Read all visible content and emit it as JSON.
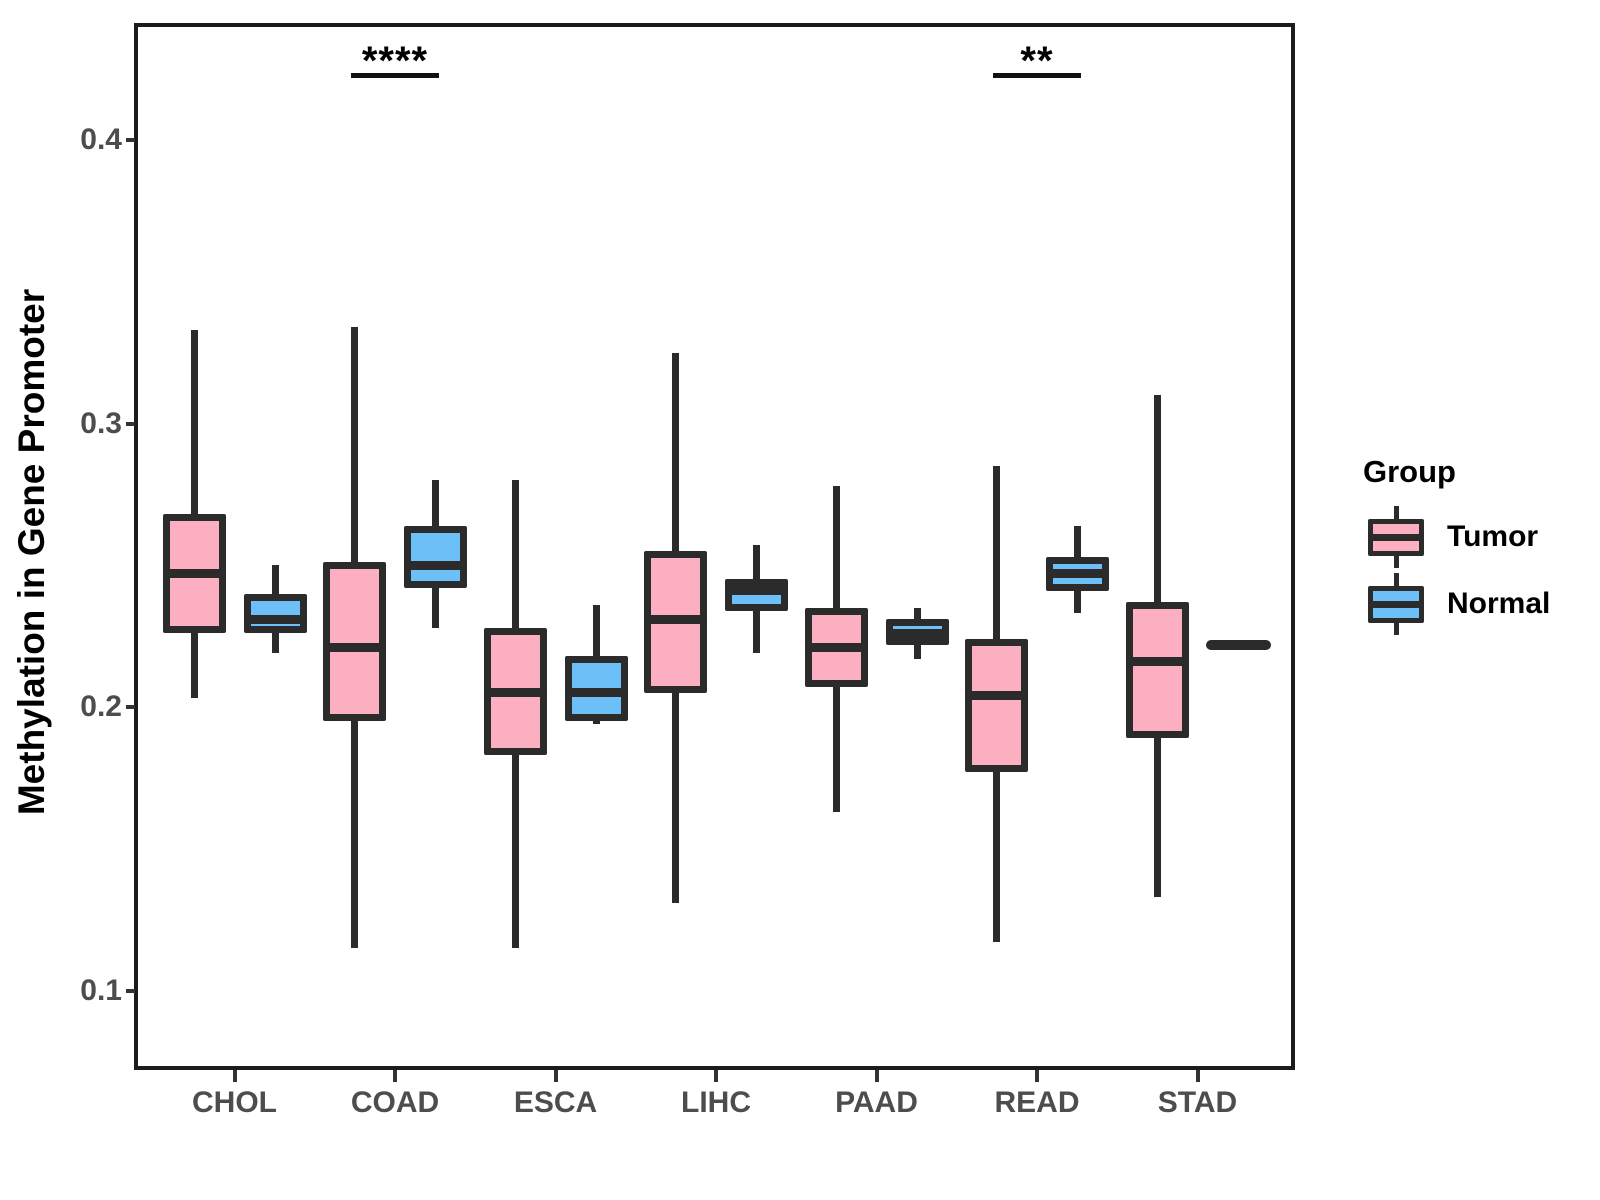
{
  "chart_data": {
    "type": "grouped_boxplot",
    "title": "",
    "xlabel": "",
    "ylabel": "Methylation in Gene Promoter",
    "categories": [
      "CHOL",
      "COAD",
      "ESCA",
      "LIHC",
      "PAAD",
      "READ",
      "STAD"
    ],
    "y_ticks": [
      0.1,
      0.2,
      0.3,
      0.4
    ],
    "y_tick_labels": [
      "0.1",
      "0.2",
      "0.3",
      "0.4"
    ],
    "ylim": [
      0.072,
      0.441
    ],
    "grid": "off",
    "legend_position": "right",
    "series": [
      {
        "name": "Tumor",
        "fill_color": "#FBAFC0",
        "stroke_color": "#2b2b2b",
        "boxes": [
          {
            "category": "CHOL",
            "whisker_low": 0.203,
            "q1": 0.226,
            "median": 0.247,
            "q3": 0.268,
            "whisker_high": 0.333
          },
          {
            "category": "COAD",
            "whisker_low": 0.115,
            "q1": 0.195,
            "median": 0.221,
            "q3": 0.251,
            "whisker_high": 0.334
          },
          {
            "category": "ESCA",
            "whisker_low": 0.115,
            "q1": 0.183,
            "median": 0.205,
            "q3": 0.228,
            "whisker_high": 0.28
          },
          {
            "category": "LIHC",
            "whisker_low": 0.131,
            "q1": 0.205,
            "median": 0.231,
            "q3": 0.255,
            "whisker_high": 0.325
          },
          {
            "category": "PAAD",
            "whisker_low": 0.163,
            "q1": 0.207,
            "median": 0.221,
            "q3": 0.235,
            "whisker_high": 0.278
          },
          {
            "category": "READ",
            "whisker_low": 0.117,
            "q1": 0.177,
            "median": 0.204,
            "q3": 0.224,
            "whisker_high": 0.285
          },
          {
            "category": "STAD",
            "whisker_low": 0.133,
            "q1": 0.189,
            "median": 0.216,
            "q3": 0.237,
            "whisker_high": 0.31
          }
        ]
      },
      {
        "name": "Normal",
        "fill_color": "#6CBFF7",
        "stroke_color": "#2b2b2b",
        "boxes": [
          {
            "category": "CHOL",
            "whisker_low": 0.219,
            "q1": 0.226,
            "median": 0.231,
            "q3": 0.24,
            "whisker_high": 0.25
          },
          {
            "category": "COAD",
            "whisker_low": 0.228,
            "q1": 0.242,
            "median": 0.25,
            "q3": 0.264,
            "whisker_high": 0.28
          },
          {
            "category": "ESCA",
            "whisker_low": 0.194,
            "q1": 0.195,
            "median": 0.205,
            "q3": 0.218,
            "whisker_high": 0.236
          },
          {
            "category": "LIHC",
            "whisker_low": 0.219,
            "q1": 0.234,
            "median": 0.241,
            "q3": 0.245,
            "whisker_high": 0.257
          },
          {
            "category": "PAAD",
            "whisker_low": 0.217,
            "q1": 0.222,
            "median": 0.226,
            "q3": 0.231,
            "whisker_high": 0.235
          },
          {
            "category": "READ",
            "whisker_low": 0.233,
            "q1": 0.241,
            "median": 0.247,
            "q3": 0.253,
            "whisker_high": 0.264
          },
          {
            "category": "STAD",
            "whisker_low": 0.222,
            "q1": 0.222,
            "median": 0.222,
            "q3": 0.222,
            "whisker_high": 0.222,
            "flat": true
          }
        ]
      }
    ],
    "annotations": [
      {
        "category": "COAD",
        "label": "****",
        "bar_y_value": 0.423
      },
      {
        "category": "READ",
        "label": "**",
        "bar_y_value": 0.423
      }
    ],
    "legend": {
      "title": "Group",
      "entries": [
        {
          "label": "Tumor"
        },
        {
          "label": "Normal"
        }
      ]
    }
  }
}
